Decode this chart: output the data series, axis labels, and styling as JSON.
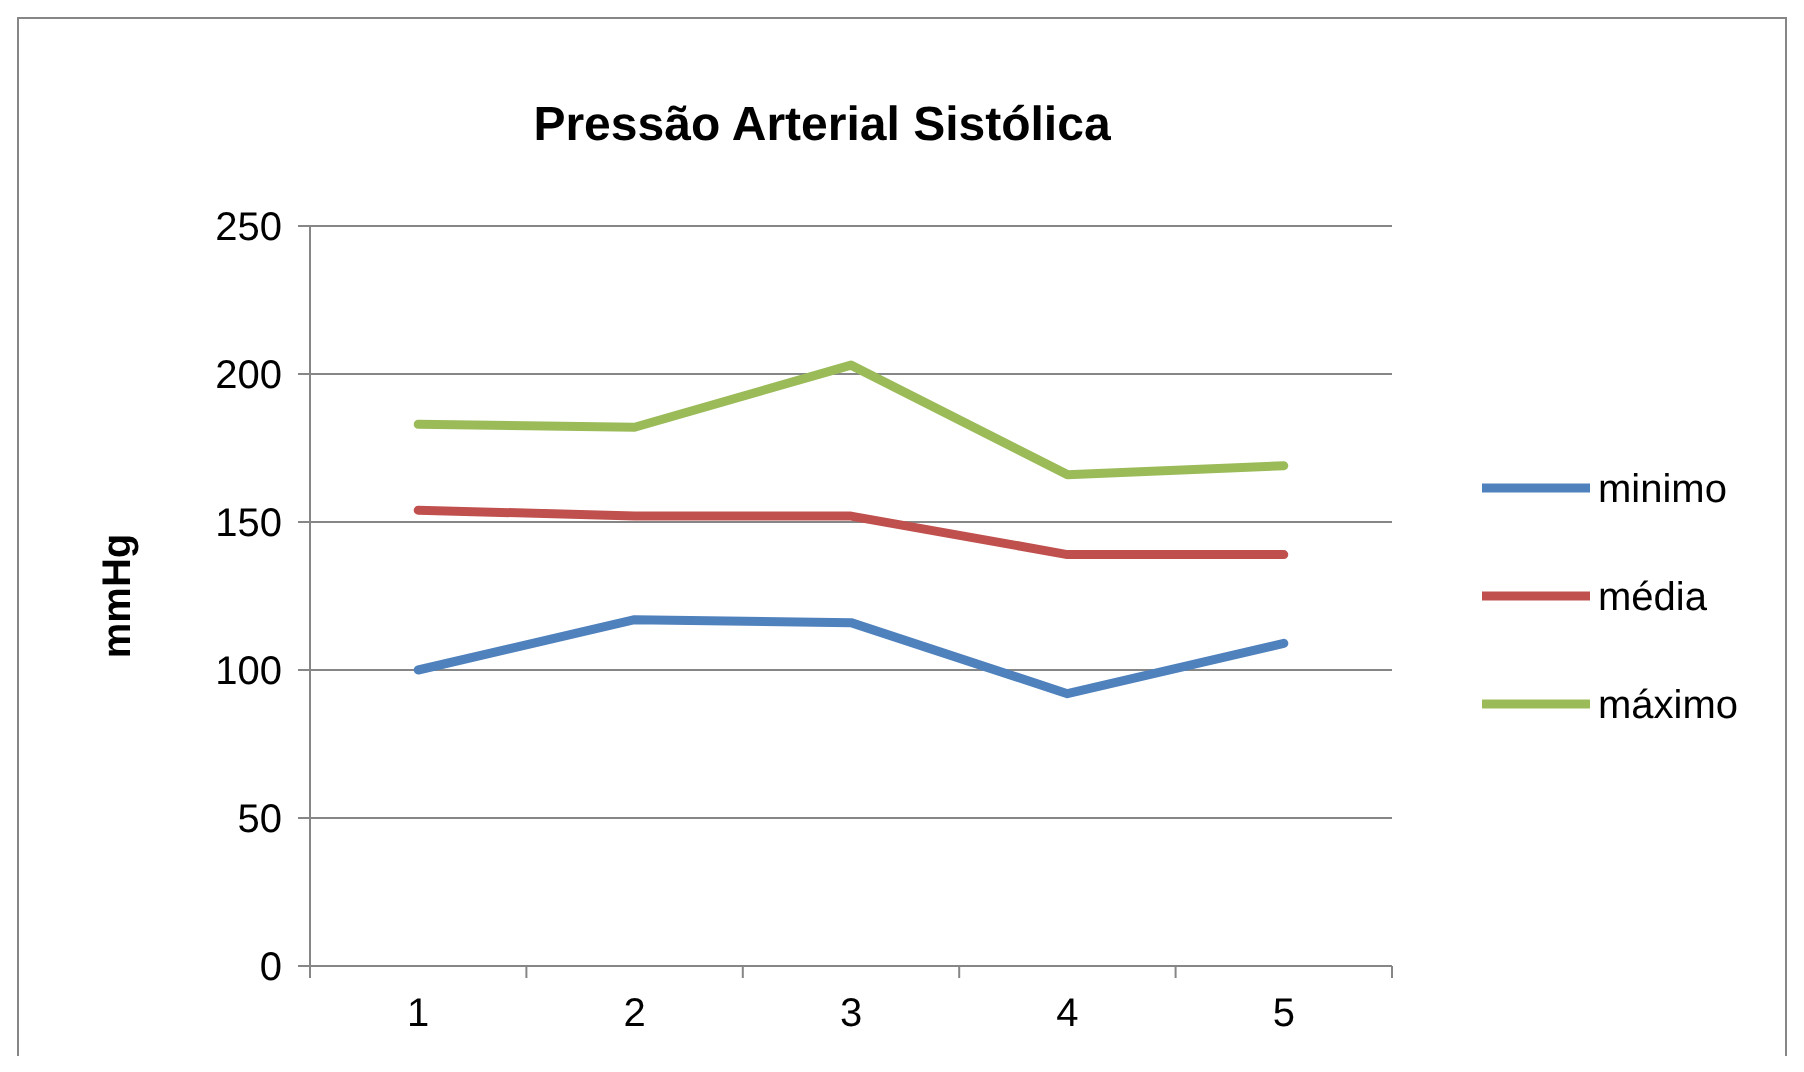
{
  "chart_data": {
    "type": "line",
    "title": "Pressão Arterial Sistólica",
    "ylabel": "mmHg",
    "categories": [
      "1",
      "2",
      "3",
      "4",
      "5"
    ],
    "series": [
      {
        "name": "minimo",
        "color": "#4f81bd",
        "values": [
          100,
          117,
          116,
          92,
          109
        ]
      },
      {
        "name": "média",
        "color": "#c0504d",
        "values": [
          154,
          152,
          152,
          139,
          139
        ]
      },
      {
        "name": "máximo",
        "color": "#9bbb59",
        "values": [
          183,
          182,
          203,
          166,
          169
        ]
      }
    ],
    "ylim": [
      0,
      250
    ],
    "yticks": [
      0,
      50,
      100,
      150,
      200,
      250
    ],
    "grid": "y",
    "legend": "right",
    "marker": "none",
    "line_style": "solid"
  }
}
